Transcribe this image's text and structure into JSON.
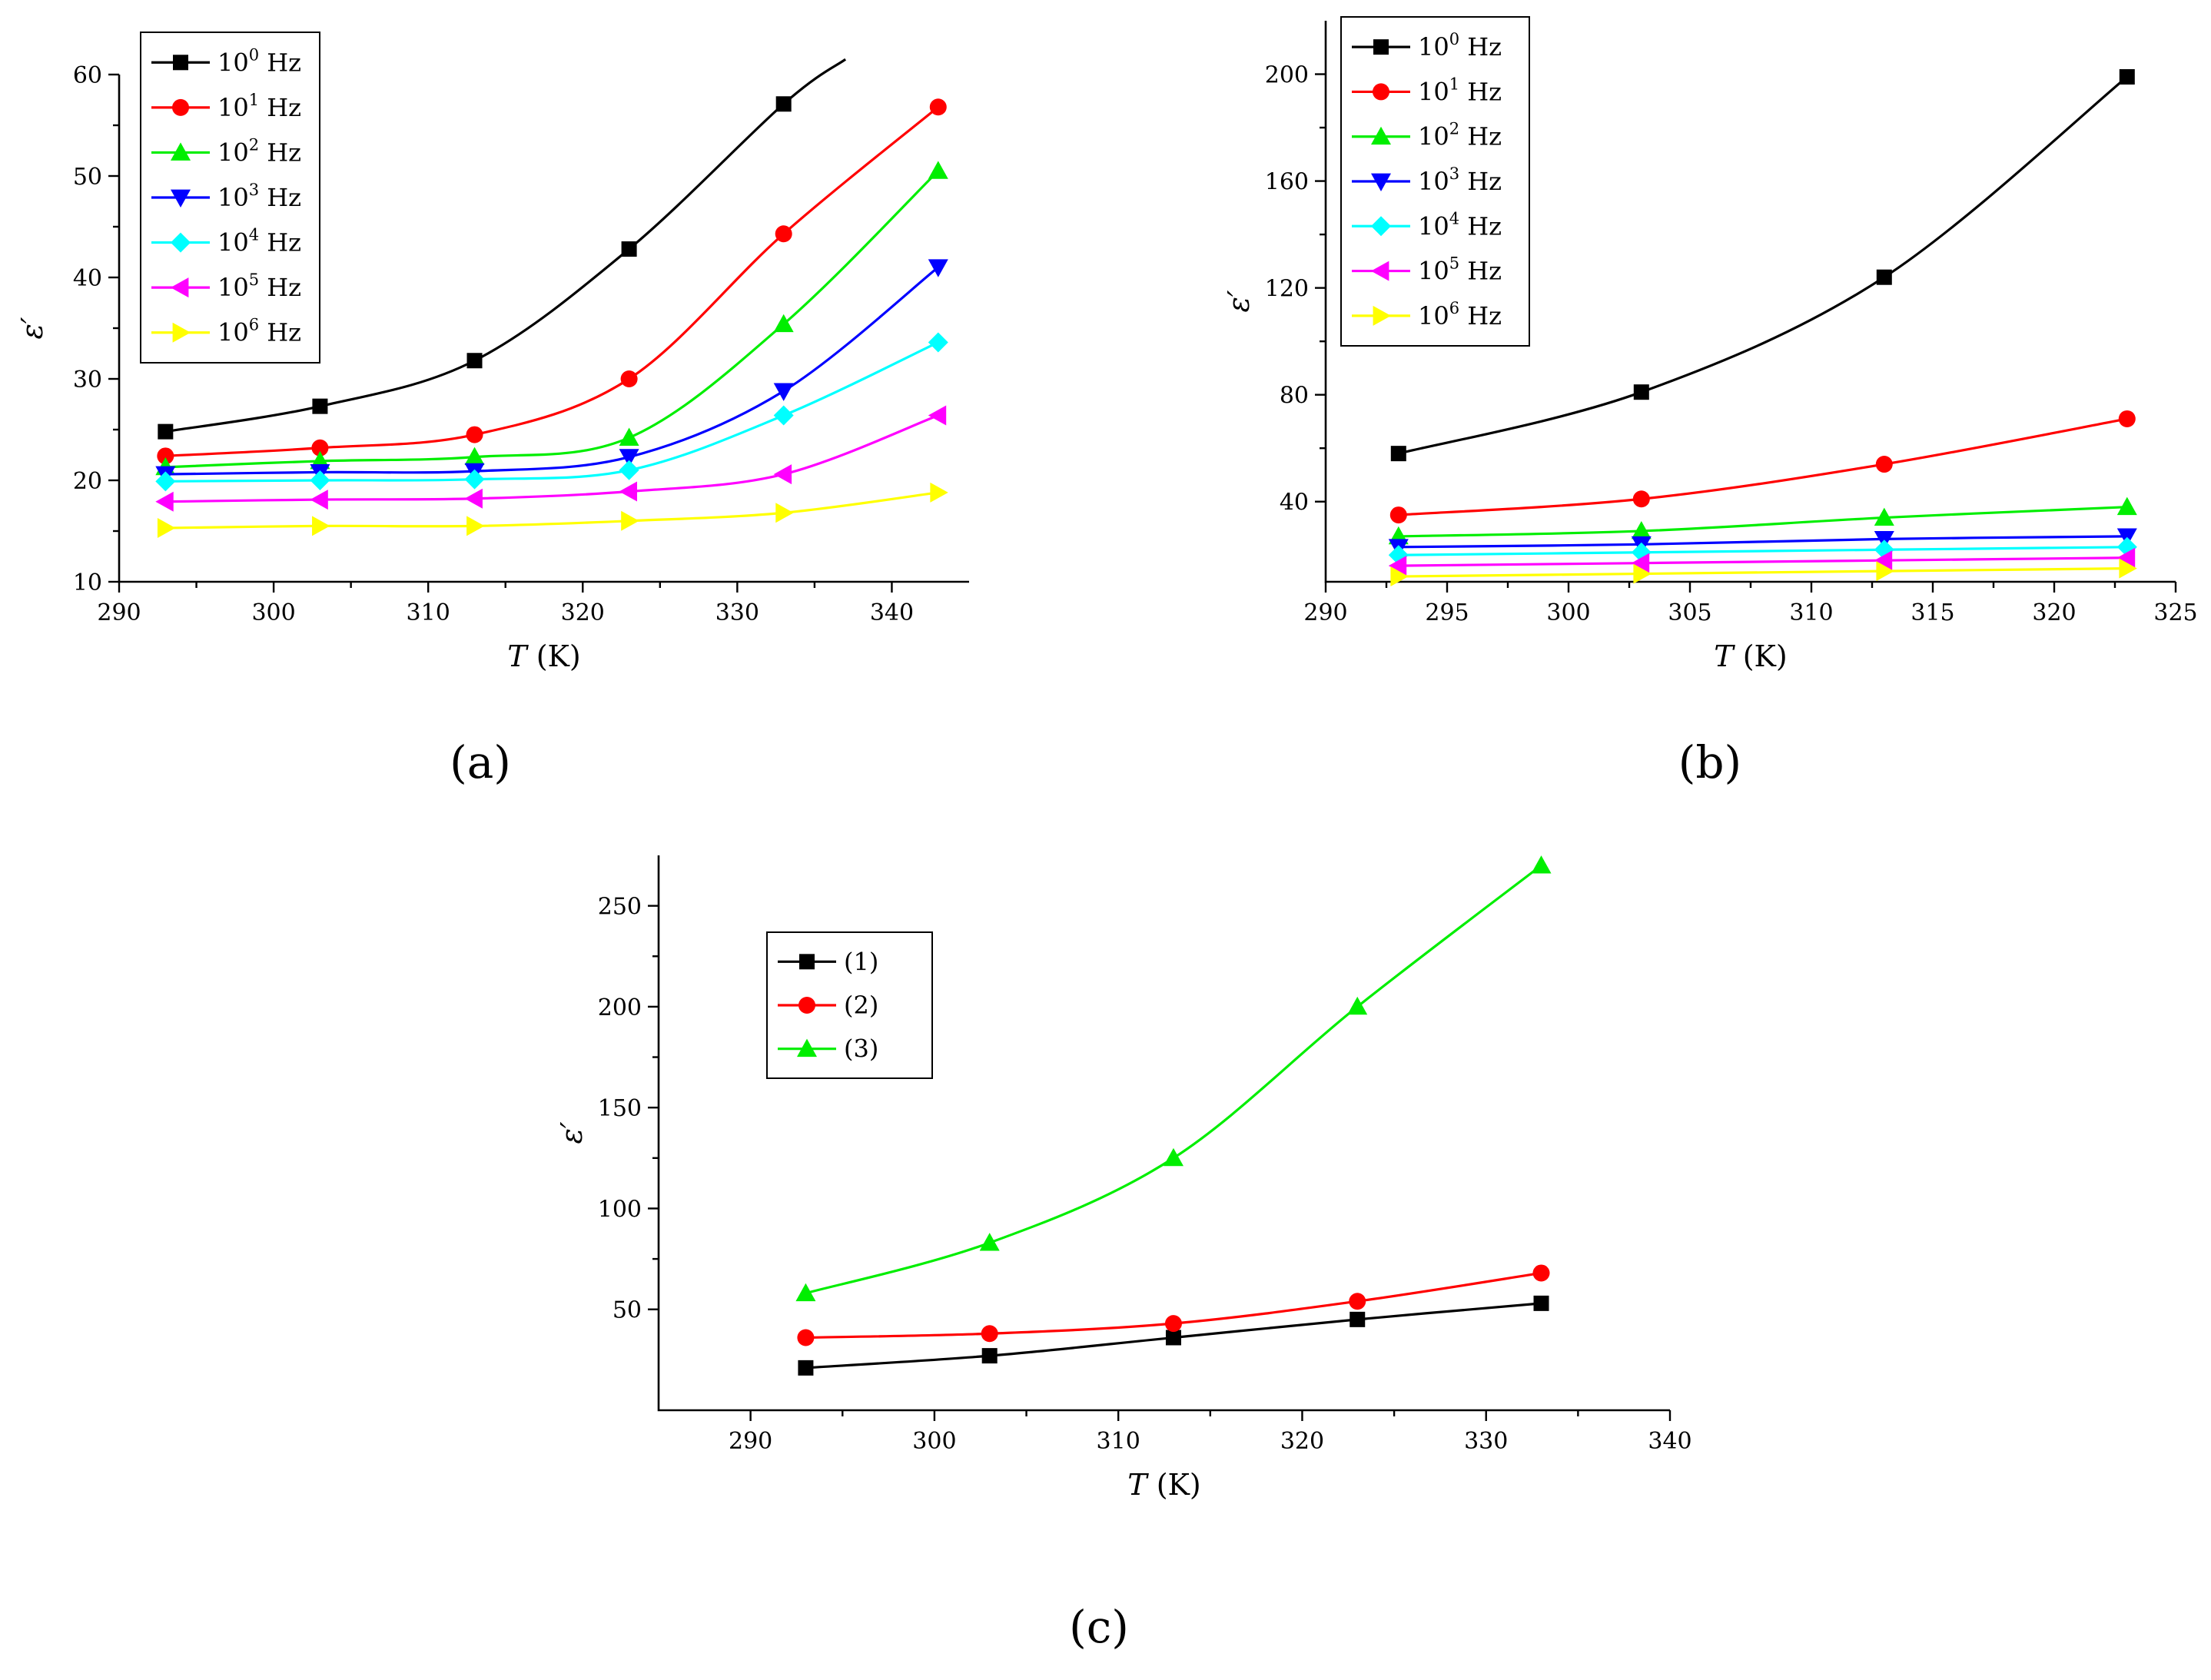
{
  "chart_data": [
    {
      "id": "a",
      "type": "line",
      "panel_label": "(a)",
      "xlabel_var": "T",
      "xlabel_unit": " (K)",
      "ylabel": "ε′",
      "xlim": [
        290,
        345
      ],
      "ylim": [
        10,
        60
      ],
      "xticks": [
        290,
        300,
        310,
        320,
        330,
        340
      ],
      "yticks": [
        10,
        20,
        30,
        40,
        50,
        60
      ],
      "legend_position": "top-left",
      "x": [
        293,
        303,
        313,
        323,
        333,
        343
      ],
      "series": [
        {
          "name": "10",
          "sup": "0",
          "unit": " Hz",
          "color": "#000000",
          "marker": "square",
          "values": [
            24.8,
            27.3,
            31.8,
            42.8,
            57.1,
            null
          ]
        },
        {
          "name": "10",
          "sup": "1",
          "unit": " Hz",
          "color": "#ff0000",
          "marker": "circle",
          "values": [
            22.4,
            23.2,
            24.5,
            30.0,
            44.3,
            56.8
          ]
        },
        {
          "name": "10",
          "sup": "2",
          "unit": " Hz",
          "color": "#00ee00",
          "marker": "triangle-up",
          "values": [
            21.3,
            21.9,
            22.3,
            24.2,
            35.4,
            50.5
          ]
        },
        {
          "name": "10",
          "sup": "3",
          "unit": " Hz",
          "color": "#0000ff",
          "marker": "triangle-down",
          "values": [
            20.6,
            20.8,
            20.9,
            22.3,
            28.8,
            41.0
          ]
        },
        {
          "name": "10",
          "sup": "4",
          "unit": " Hz",
          "color": "#00ffff",
          "marker": "diamond",
          "values": [
            19.9,
            20.0,
            20.1,
            21.0,
            26.4,
            33.6
          ]
        },
        {
          "name": "10",
          "sup": "5",
          "unit": " Hz",
          "color": "#ff00ff",
          "marker": "triangle-left",
          "values": [
            17.9,
            18.1,
            18.2,
            18.9,
            20.6,
            26.4
          ]
        },
        {
          "name": "10",
          "sup": "6",
          "unit": " Hz",
          "color": "#ffff00",
          "marker": "triangle-right",
          "values": [
            15.3,
            15.5,
            15.5,
            16.0,
            16.8,
            18.8
          ]
        }
      ]
    },
    {
      "id": "b",
      "type": "line",
      "panel_label": "(b)",
      "xlabel_var": "T",
      "xlabel_unit": " (K)",
      "ylabel": "ε′",
      "xlim": [
        290,
        325
      ],
      "ylim": [
        10,
        220
      ],
      "xticks": [
        290,
        295,
        300,
        305,
        310,
        315,
        320,
        325
      ],
      "yticks": [
        40,
        80,
        120,
        160,
        200
      ],
      "legend_position": "top-left",
      "x": [
        293,
        303,
        313,
        323
      ],
      "series": [
        {
          "name": "10",
          "sup": "0",
          "unit": " Hz",
          "color": "#000000",
          "marker": "square",
          "values": [
            58,
            81,
            124,
            199
          ]
        },
        {
          "name": "10",
          "sup": "1",
          "unit": " Hz",
          "color": "#ff0000",
          "marker": "circle",
          "values": [
            35,
            41,
            54,
            71
          ]
        },
        {
          "name": "10",
          "sup": "2",
          "unit": " Hz",
          "color": "#00ee00",
          "marker": "triangle-up",
          "values": [
            27,
            29,
            34,
            38
          ]
        },
        {
          "name": "10",
          "sup": "3",
          "unit": " Hz",
          "color": "#0000ff",
          "marker": "triangle-down",
          "values": [
            23,
            24,
            26,
            27
          ]
        },
        {
          "name": "10",
          "sup": "4",
          "unit": " Hz",
          "color": "#00ffff",
          "marker": "diamond",
          "values": [
            20,
            21,
            22,
            23
          ]
        },
        {
          "name": "10",
          "sup": "5",
          "unit": " Hz",
          "color": "#ff00ff",
          "marker": "triangle-left",
          "values": [
            16,
            17,
            18,
            19
          ]
        },
        {
          "name": "10",
          "sup": "6",
          "unit": " Hz",
          "color": "#ffff00",
          "marker": "triangle-right",
          "values": [
            12,
            13,
            14,
            15
          ]
        }
      ]
    },
    {
      "id": "c",
      "type": "line",
      "panel_label": "(c)",
      "xlabel_var": "T",
      "xlabel_unit": " (K)",
      "ylabel": "ε′",
      "xlim": [
        285,
        340
      ],
      "ylim": [
        0,
        275
      ],
      "xticks": [
        290,
        300,
        310,
        320,
        330,
        340
      ],
      "yticks": [
        50,
        100,
        150,
        200,
        250
      ],
      "legend_position": "upper-left-center",
      "x": [
        293,
        303,
        313,
        323,
        333
      ],
      "series": [
        {
          "name": "(1)",
          "sup": "",
          "unit": "",
          "color": "#000000",
          "marker": "square",
          "values": [
            21,
            27,
            36,
            45,
            53
          ]
        },
        {
          "name": "(2)",
          "sup": "",
          "unit": "",
          "color": "#ff0000",
          "marker": "circle",
          "values": [
            36,
            38,
            43,
            54,
            68
          ]
        },
        {
          "name": "(3)",
          "sup": "",
          "unit": "",
          "color": "#00ee00",
          "marker": "triangle-up",
          "values": [
            58,
            83,
            125,
            200,
            270
          ]
        }
      ]
    }
  ]
}
